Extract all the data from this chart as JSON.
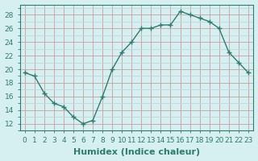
{
  "x": [
    0,
    1,
    2,
    3,
    4,
    5,
    6,
    7,
    8,
    9,
    10,
    11,
    12,
    13,
    14,
    15,
    16,
    17,
    18,
    19,
    20,
    21,
    22,
    23
  ],
  "y": [
    19.5,
    19.0,
    16.5,
    15.0,
    14.5,
    13.0,
    12.0,
    12.5,
    16.0,
    20.0,
    22.5,
    24.0,
    26.0,
    26.0,
    26.5,
    26.5,
    28.5,
    28.0,
    27.5,
    27.0,
    26.0,
    22.5,
    21.0,
    19.5
  ],
  "line_color": "#2e7d6e",
  "marker": "+",
  "marker_size": 4,
  "bg_color": "#d6eff0",
  "grid_major_color": "#c8a0a0",
  "grid_minor_color": "#c0d8da",
  "xlabel": "Humidex (Indice chaleur)",
  "xlim": [
    -0.5,
    23.5
  ],
  "ylim": [
    11,
    29.5
  ],
  "yticks": [
    12,
    14,
    16,
    18,
    20,
    22,
    24,
    26,
    28
  ],
  "xticks": [
    0,
    1,
    2,
    3,
    4,
    5,
    6,
    7,
    8,
    9,
    10,
    11,
    12,
    13,
    14,
    15,
    16,
    17,
    18,
    19,
    20,
    21,
    22,
    23
  ],
  "tick_label_fontsize": 6.5,
  "xlabel_fontsize": 8
}
